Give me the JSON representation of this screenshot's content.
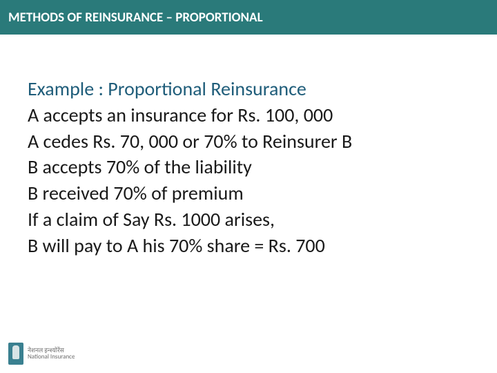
{
  "header": {
    "title": "METHODS OF REINSURANCE – PROPORTIONAL",
    "bg_color": "#2a7a7a",
    "text_color": "#ffffff",
    "fontsize": 19
  },
  "content": {
    "title": "Example : Proportional Reinsurance",
    "title_color": "#1f5d7a",
    "body_color": "#1a1a1a",
    "fontsize": 28,
    "lines": [
      "A accepts an insurance for Rs. 100, 000",
      "A cedes Rs. 70, 000 or 70% to Reinsurer B",
      "B accepts 70% of the liability",
      "B received 70% of premium",
      "If a claim of Say Rs. 1000 arises,",
      "B will pay to A his 70% share = Rs. 700"
    ]
  },
  "footer": {
    "logo_line1": "नेशनल इन्श्योरेंस",
    "logo_line2": "National Insurance"
  }
}
